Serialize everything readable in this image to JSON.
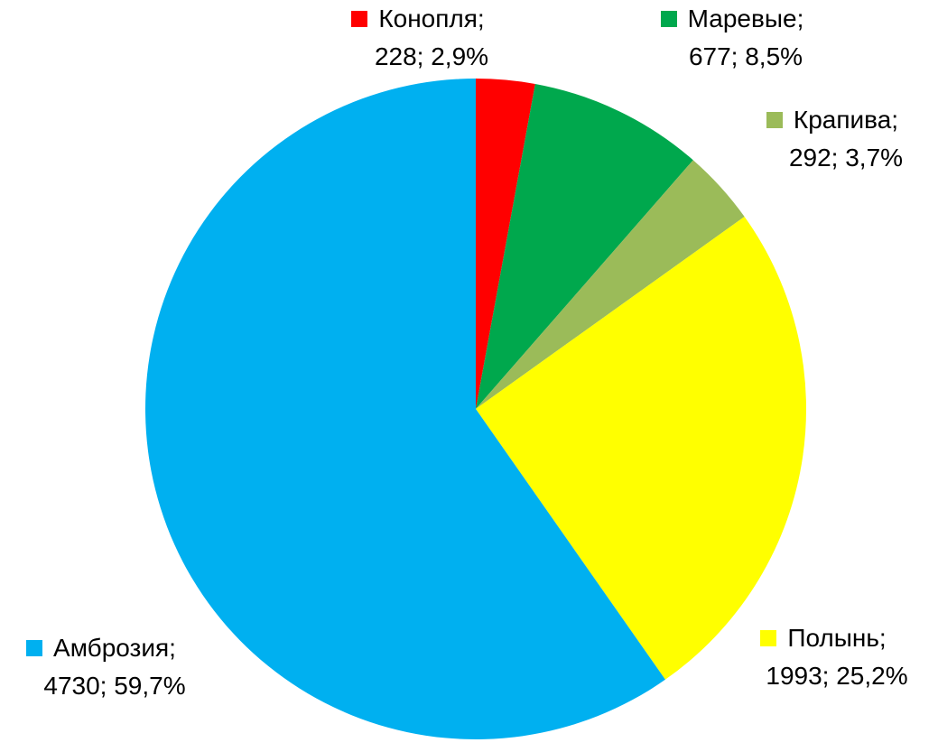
{
  "chart_data": {
    "type": "pie",
    "direction": "clockwise",
    "start_angle_deg": 0,
    "legend_position": "around-pie",
    "background_color": "#FFFFFF",
    "text_color": "#000000",
    "slices": [
      {
        "label": "Конопля",
        "value": 228,
        "percent": "2,9%",
        "color": "#FF0000",
        "legend_line1": "Конопля;",
        "legend_line2": "228; 2,9%"
      },
      {
        "label": "Маревые",
        "value": 677,
        "percent": "8,5%",
        "color": "#00A84D",
        "legend_line1": "Маревые;",
        "legend_line2": "677; 8,5%"
      },
      {
        "label": "Крапива",
        "value": 292,
        "percent": "3,7%",
        "color": "#9BBB59",
        "legend_line1": "Крапива;",
        "legend_line2": "292; 3,7%"
      },
      {
        "label": "Полынь",
        "value": 1993,
        "percent": "25,2%",
        "color": "#FFFF00",
        "legend_line1": "Полынь;",
        "legend_line2": "1993; 25,2%"
      },
      {
        "label": "Амброзия",
        "value": 4730,
        "percent": "59,7%",
        "color": "#00B0F0",
        "legend_line1": "Амброзия;",
        "legend_line2": "4730; 59,7%"
      }
    ]
  }
}
